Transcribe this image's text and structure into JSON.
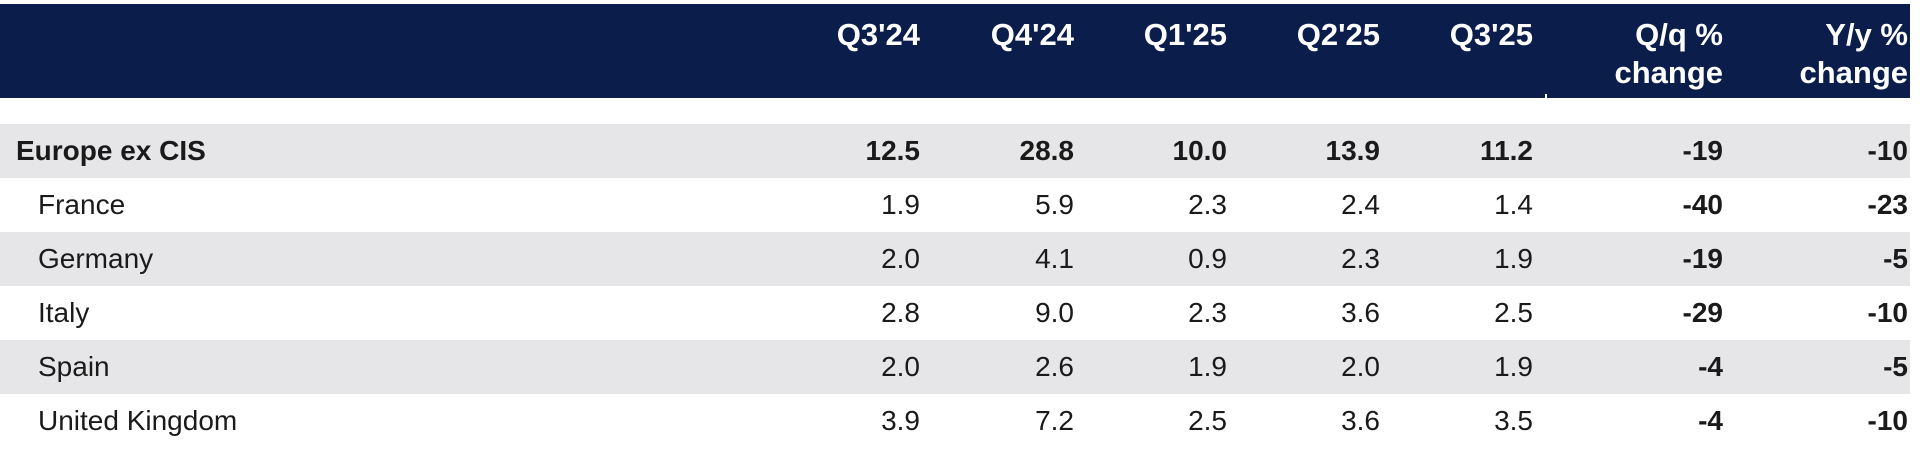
{
  "table": {
    "headers": [
      "",
      "Q3'24",
      "Q4'24",
      "Q1'25",
      "Q2'25",
      "Q3'25",
      "Q/q %\nchange",
      "Y/y %\nchange"
    ],
    "rows": [
      {
        "label": "Europe ex CIS",
        "values": [
          "12.5",
          "28.8",
          "10.0",
          "13.9",
          "11.2",
          "-19",
          "-10"
        ]
      },
      {
        "label": "France",
        "values": [
          "1.9",
          "5.9",
          "2.3",
          "2.4",
          "1.4",
          "-40",
          "-23"
        ]
      },
      {
        "label": "Germany",
        "values": [
          "2.0",
          "4.1",
          "0.9",
          "2.3",
          "1.9",
          "-19",
          "-5"
        ]
      },
      {
        "label": "Italy",
        "values": [
          "2.8",
          "9.0",
          "2.3",
          "3.6",
          "2.5",
          "-29",
          "-10"
        ]
      },
      {
        "label": "Spain",
        "values": [
          "2.0",
          "2.6",
          "1.9",
          "2.0",
          "1.9",
          "-4",
          "-5"
        ]
      },
      {
        "label": "United Kingdom",
        "values": [
          "3.9",
          "7.2",
          "2.5",
          "3.6",
          "3.5",
          "-4",
          "-10"
        ]
      }
    ]
  },
  "colors": {
    "header_bg": "#0b1e4b",
    "header_text": "#ffffff",
    "row_shade": "#e6e6e8"
  }
}
